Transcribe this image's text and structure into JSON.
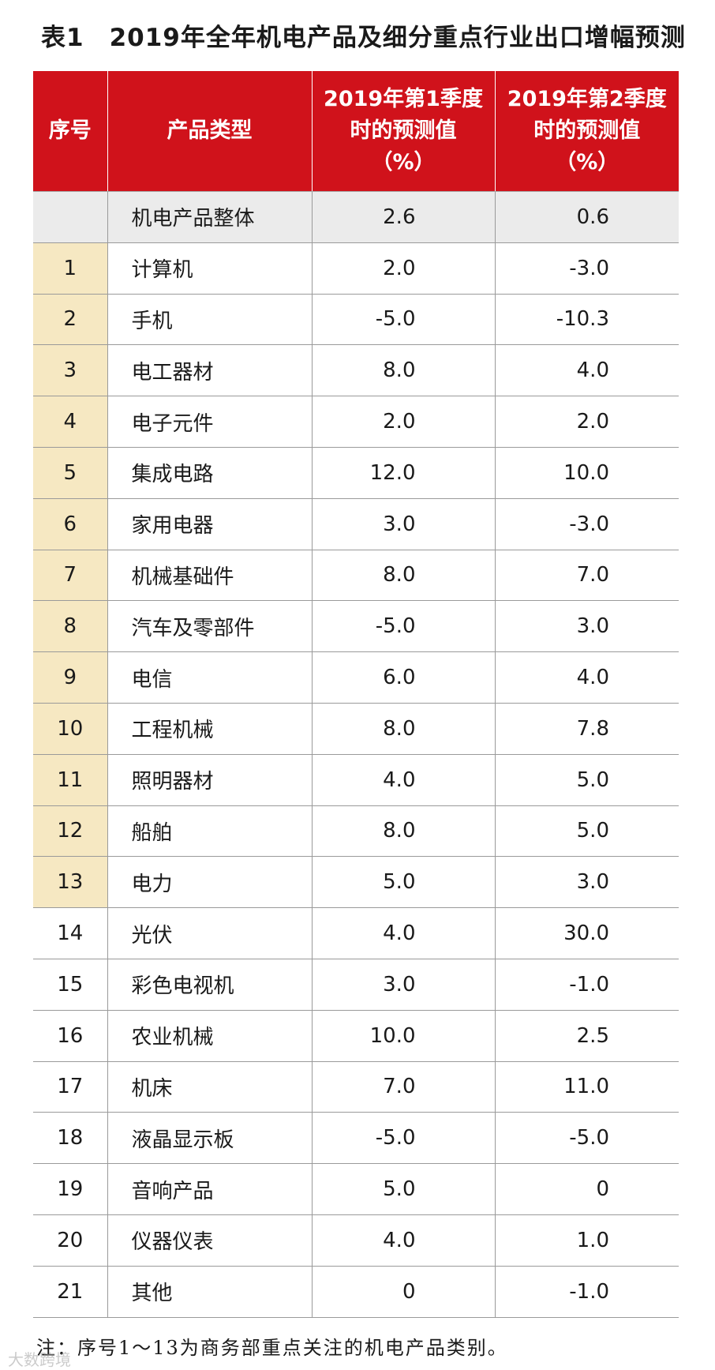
{
  "title": {
    "label": "表1",
    "text": "2019年全年机电产品及细分重点行业出口增幅预测"
  },
  "table": {
    "headers": {
      "index": "序号",
      "type": "产品类型",
      "q1": [
        "2019年第1季度",
        "时的预测值",
        "（%）"
      ],
      "q2": [
        "2019年第2季度",
        "时的预测值",
        "（%）"
      ]
    },
    "rows": [
      {
        "index": "",
        "name": "机电产品整体",
        "q1": "2.6",
        "q2": "0.6"
      },
      {
        "index": "1",
        "name": "计算机",
        "q1": "2.0",
        "q2": "-3.0"
      },
      {
        "index": "2",
        "name": "手机",
        "q1": "-5.0",
        "q2": "-10.3"
      },
      {
        "index": "3",
        "name": "电工器材",
        "q1": "8.0",
        "q2": "4.0"
      },
      {
        "index": "4",
        "name": "电子元件",
        "q1": "2.0",
        "q2": "2.0"
      },
      {
        "index": "5",
        "name": "集成电路",
        "q1": "12.0",
        "q2": "10.0"
      },
      {
        "index": "6",
        "name": "家用电器",
        "q1": "3.0",
        "q2": "-3.0"
      },
      {
        "index": "7",
        "name": "机械基础件",
        "q1": "8.0",
        "q2": "7.0"
      },
      {
        "index": "8",
        "name": "汽车及零部件",
        "q1": "-5.0",
        "q2": "3.0"
      },
      {
        "index": "9",
        "name": "电信",
        "q1": "6.0",
        "q2": "4.0"
      },
      {
        "index": "10",
        "name": "工程机械",
        "q1": "8.0",
        "q2": "7.8"
      },
      {
        "index": "11",
        "name": "照明器材",
        "q1": "4.0",
        "q2": "5.0"
      },
      {
        "index": "12",
        "name": "船舶",
        "q1": "8.0",
        "q2": "5.0"
      },
      {
        "index": "13",
        "name": "电力",
        "q1": "5.0",
        "q2": "3.0"
      },
      {
        "index": "14",
        "name": "光伏",
        "q1": "4.0",
        "q2": "30.0"
      },
      {
        "index": "15",
        "name": "彩色电视机",
        "q1": "3.0",
        "q2": "-1.0"
      },
      {
        "index": "16",
        "name": "农业机械",
        "q1": "10.0",
        "q2": "2.5"
      },
      {
        "index": "17",
        "name": "机床",
        "q1": "7.0",
        "q2": "11.0"
      },
      {
        "index": "18",
        "name": "液晶显示板",
        "q1": "-5.0",
        "q2": "-5.0"
      },
      {
        "index": "19",
        "name": "音响产品",
        "q1": "5.0",
        "q2": "0"
      },
      {
        "index": "20",
        "name": "仪器仪表",
        "q1": "4.0",
        "q2": "1.0"
      },
      {
        "index": "21",
        "name": "其他",
        "q1": "0",
        "q2": "-1.0"
      }
    ]
  },
  "note": "注：序号1～13为商务部重点关注的机电产品类别。",
  "watermark": "大数跨境",
  "colors": {
    "header_bg": "#d0121b",
    "focus_index_bg": "#f6e8c2",
    "total_row_bg": "#ebebeb"
  }
}
